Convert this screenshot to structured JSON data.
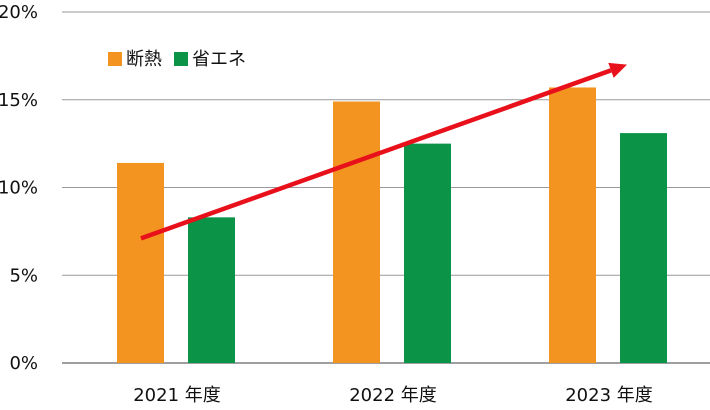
{
  "chart_data": {
    "type": "bar",
    "categories": [
      "2021 年度",
      "2022 年度",
      "2023 年度"
    ],
    "series": [
      {
        "name": "断熱",
        "values": [
          11.4,
          14.9,
          15.7
        ],
        "color": "#f39320"
      },
      {
        "name": "省エネ",
        "values": [
          8.3,
          12.5,
          13.1
        ],
        "color": "#0b9447"
      }
    ],
    "ylim": [
      0,
      20
    ],
    "yticks": [
      0,
      5,
      10,
      15,
      20
    ],
    "ytick_labels": [
      "0%",
      "5%",
      "10%",
      "15%",
      "20%"
    ],
    "grid": true,
    "legend_position": "top-left",
    "trend_arrow": {
      "color": "#e8101a",
      "from": {
        "category": "2021 年度",
        "value": 7.1
      },
      "to": {
        "category": "2023 年度",
        "value": 17.0
      }
    }
  }
}
